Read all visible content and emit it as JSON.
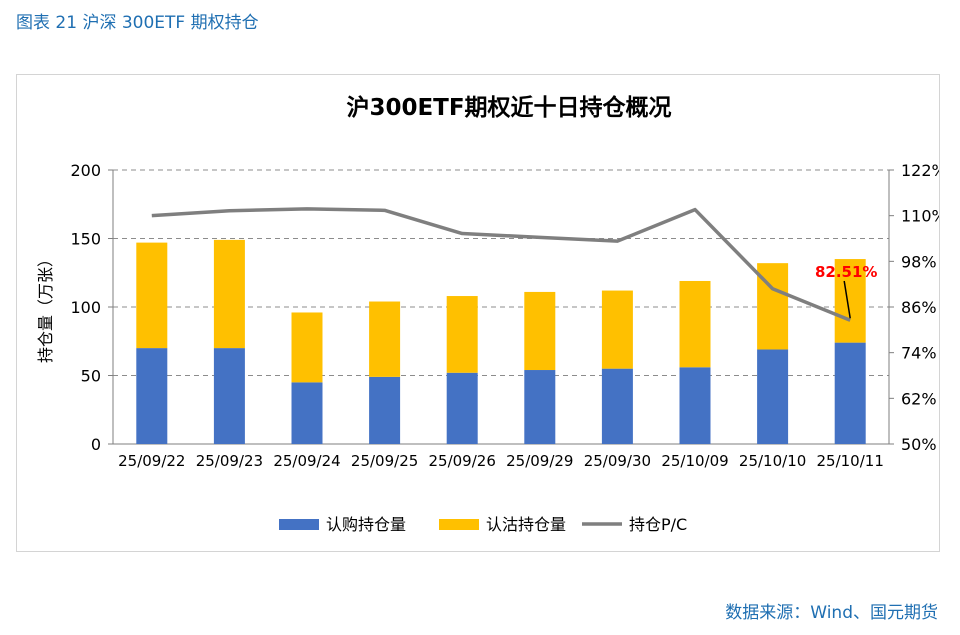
{
  "figure_caption": "图表 21 沪深 300ETF 期权持仓",
  "source_note": "数据来源：Wind、国元期货",
  "colors": {
    "call": "#4472c4",
    "put": "#ffc000",
    "pc_line": "#7f7f7f",
    "annotation": "#ff0000",
    "caption": "#1f6fb2"
  },
  "chart_data": {
    "type": "bar",
    "stacked": true,
    "title": "沪300ETF期权近十日持仓概况",
    "ylabel": "持仓量（万张）",
    "categories": [
      "25/09/22",
      "25/09/23",
      "25/09/24",
      "25/09/25",
      "25/09/26",
      "25/09/29",
      "25/09/30",
      "25/10/09",
      "25/10/10",
      "25/10/11"
    ],
    "ylim": [
      0,
      200
    ],
    "yticks": [
      "0",
      "50",
      "100",
      "150",
      "200"
    ],
    "y2lim": [
      50,
      122
    ],
    "y2ticks": [
      "50%",
      "62%",
      "74%",
      "86%",
      "98%",
      "110%",
      "122%"
    ],
    "series": [
      {
        "name": "认购持仓量",
        "axis": "left",
        "kind": "bar",
        "values": [
          70,
          70,
          45,
          49,
          52,
          54,
          55,
          56,
          69,
          74
        ]
      },
      {
        "name": "认沽持仓量",
        "axis": "left",
        "kind": "bar",
        "values": [
          77,
          79,
          51,
          55,
          56,
          57,
          57,
          63,
          63,
          61
        ]
      },
      {
        "name": "持仓P/C",
        "axis": "right",
        "kind": "line",
        "values": [
          110.0,
          111.3,
          111.8,
          111.4,
          105.3,
          104.3,
          103.3,
          111.6,
          90.8,
          82.51
        ]
      }
    ],
    "annotation": {
      "text": "82.51%",
      "category": "25/10/11",
      "value": 82.51
    },
    "legend": "bottom-center",
    "grid": "dashed-horizontal"
  }
}
